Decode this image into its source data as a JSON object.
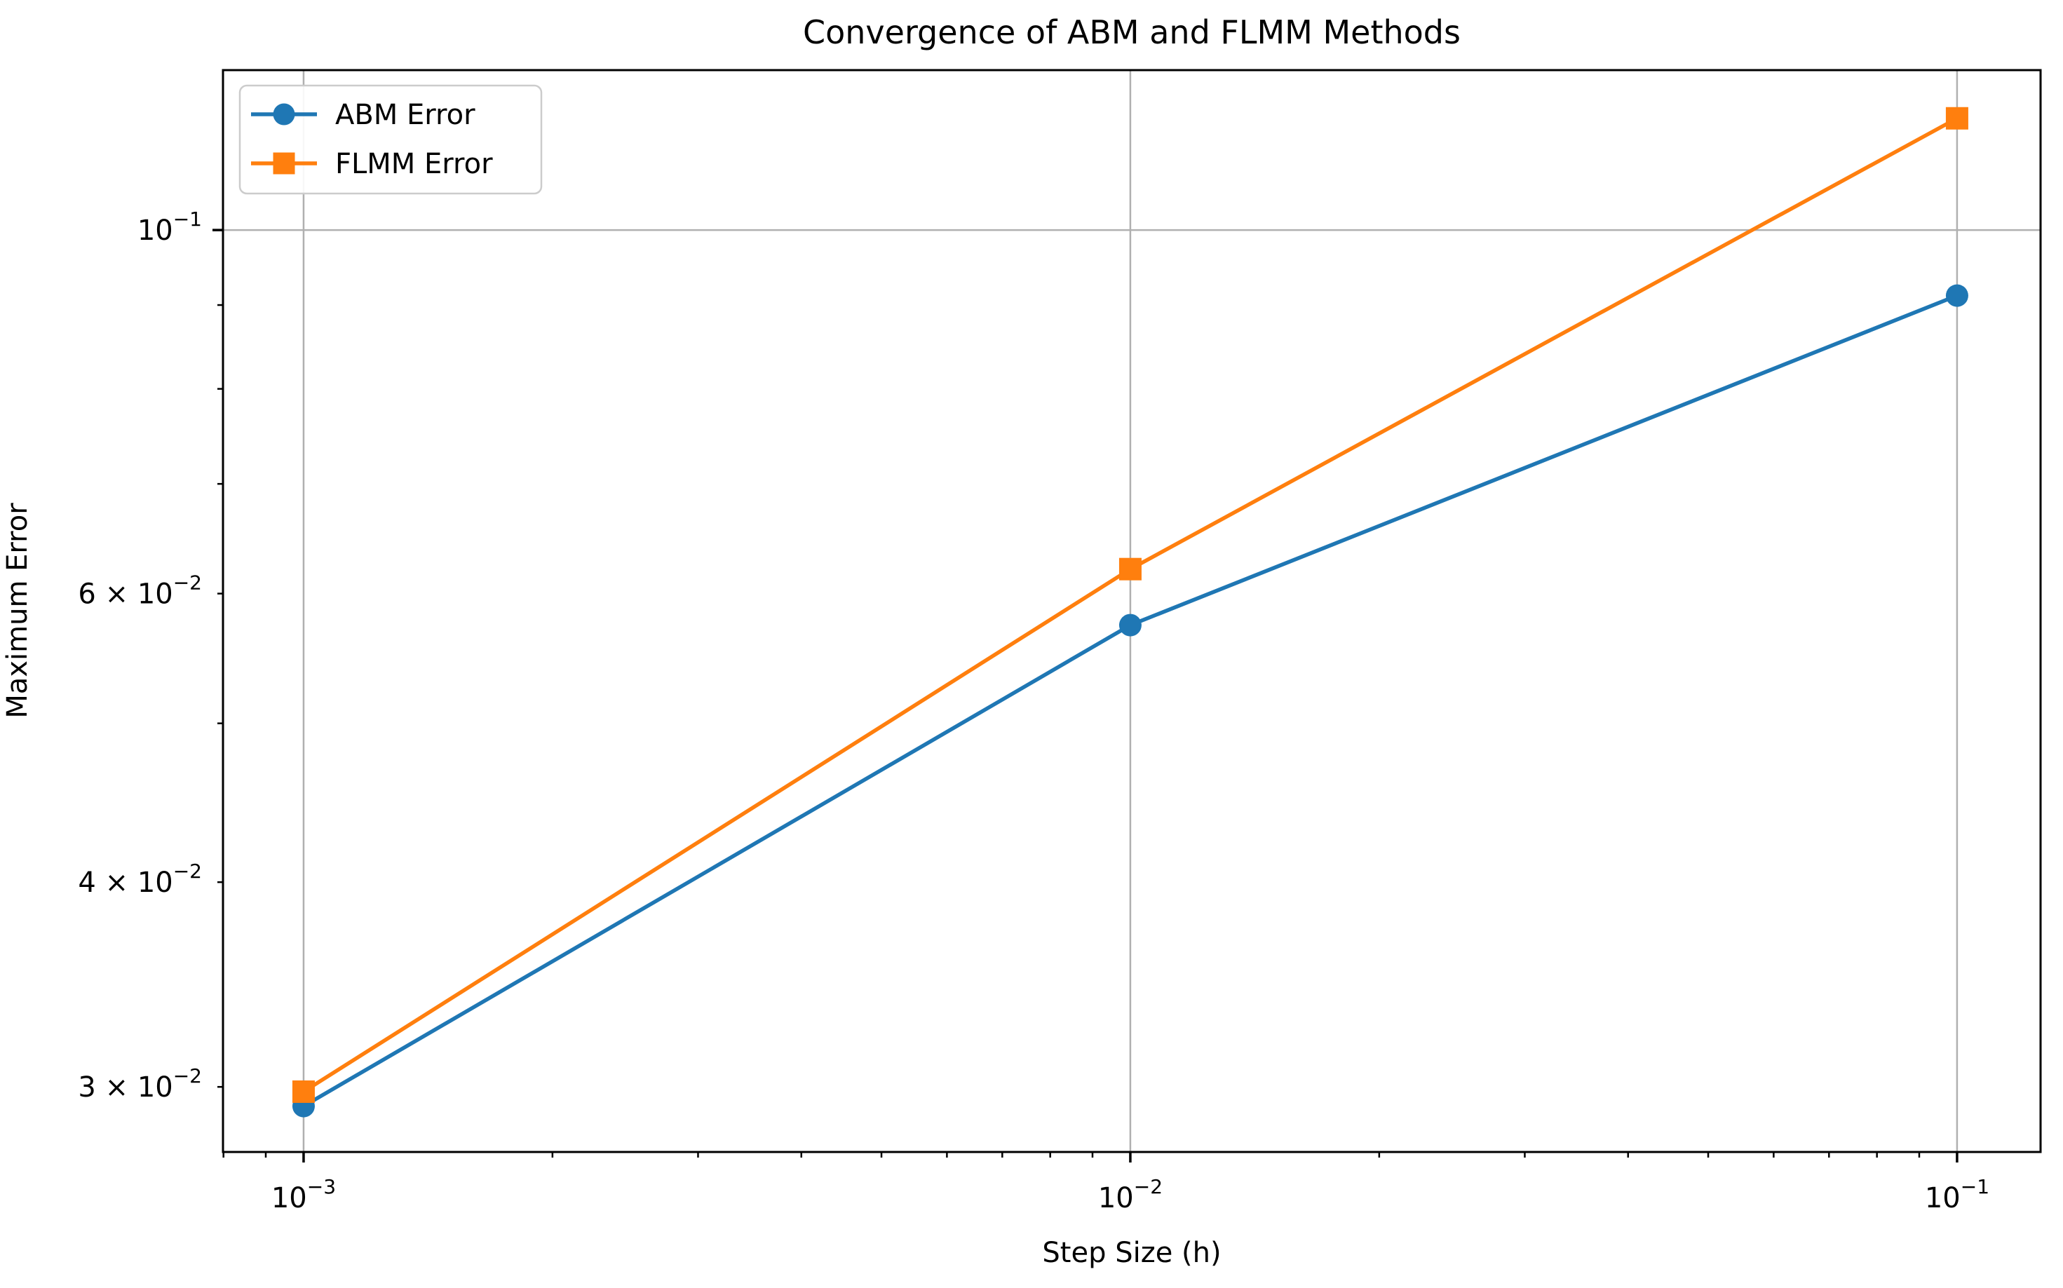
{
  "chart_data": {
    "type": "line",
    "title": "Convergence of ABM and FLMM Methods",
    "xlabel": "Step Size (h)",
    "ylabel": "Maximum Error",
    "xscale": "log",
    "yscale": "log",
    "x": [
      0.001,
      0.01,
      0.1
    ],
    "series": [
      {
        "name": "ABM Error",
        "values": [
          0.0292,
          0.0574,
          0.0912
        ],
        "color": "#1f77b4",
        "marker": "circle"
      },
      {
        "name": "FLMM Error",
        "values": [
          0.0298,
          0.0621,
          0.117
        ],
        "color": "#ff7f0e",
        "marker": "square"
      }
    ],
    "xlim_log10": [
      -3.0975,
      -0.899
    ],
    "ylim_log10": [
      -1.5626,
      -0.9024
    ],
    "x_major_ticks": [
      {
        "value": 0.001,
        "base": "10",
        "exp": "−3"
      },
      {
        "value": 0.01,
        "base": "10",
        "exp": "−2"
      },
      {
        "value": 0.1,
        "base": "10",
        "exp": "−1"
      }
    ],
    "y_major_ticks": [
      {
        "value": 0.1,
        "base": "10",
        "exp": "−1"
      }
    ],
    "y_minor_labeled_ticks": [
      {
        "value": 0.06,
        "base": "6 × 10",
        "exp": "−2"
      },
      {
        "value": 0.04,
        "base": "4 × 10",
        "exp": "−2"
      },
      {
        "value": 0.03,
        "base": "3 × 10",
        "exp": "−2"
      }
    ],
    "grid": true,
    "legend_position": "upper left",
    "colors": {
      "grid": "#b0b0b0",
      "spine": "#000000",
      "background": "#ffffff",
      "legend_border": "#cccccc"
    }
  }
}
